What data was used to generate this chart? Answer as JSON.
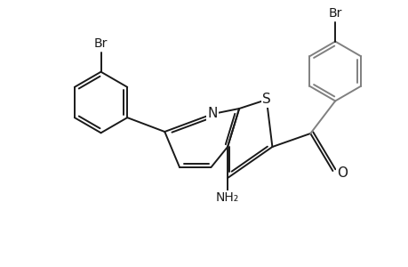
{
  "background_color": "#ffffff",
  "line_color": "#1a1a1a",
  "line_color_gray": "#808080",
  "line_width": 1.4,
  "font_size": 10,
  "figsize": [
    4.6,
    3.0
  ],
  "dpi": 100,
  "xlim": [
    -1.0,
    9.0
  ],
  "ylim": [
    -1.5,
    5.5
  ]
}
